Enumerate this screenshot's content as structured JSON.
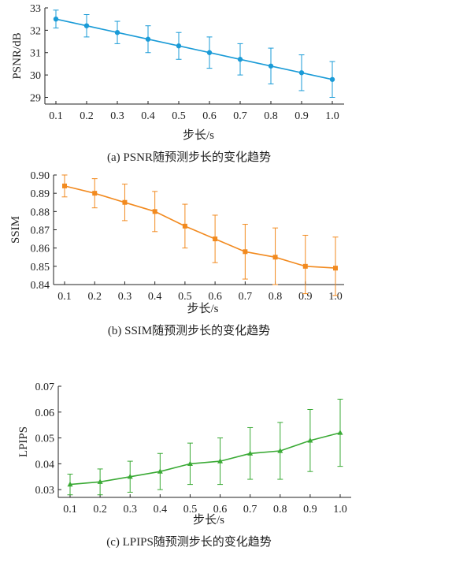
{
  "chart_data": [
    {
      "type": "line",
      "x": [
        0.1,
        0.2,
        0.3,
        0.4,
        0.5,
        0.6,
        0.7,
        0.8,
        0.9,
        1.0
      ],
      "xticks": [
        "0.1",
        "0.2",
        "0.3",
        "0.4",
        "0.5",
        "0.6",
        "0.7",
        "0.8",
        "0.9",
        "1.0"
      ],
      "yticks": [
        "33",
        "32",
        "31",
        "30",
        "29"
      ],
      "ylim": [
        28.7,
        33.0
      ],
      "xlabel": "步长/s",
      "ylabel": "PSNR/dB",
      "caption": "(a) PSNR随预测步长的变化趋势",
      "marker": "circle",
      "color": "#1a9bd7",
      "series": [
        {
          "values": [
            32.5,
            32.2,
            31.9,
            31.6,
            31.3,
            31.0,
            30.7,
            30.4,
            30.1,
            29.8
          ],
          "err_low": [
            32.1,
            31.7,
            31.4,
            31.0,
            30.7,
            30.3,
            30.0,
            29.6,
            29.3,
            29.0
          ],
          "err_high": [
            32.9,
            32.7,
            32.4,
            32.2,
            31.9,
            31.7,
            31.4,
            31.2,
            30.9,
            30.6
          ]
        }
      ]
    },
    {
      "type": "line",
      "x": [
        0.1,
        0.2,
        0.3,
        0.4,
        0.5,
        0.6,
        0.7,
        0.8,
        0.9,
        1.0
      ],
      "xticks": [
        "0.1",
        "0.2",
        "0.3",
        "0.4",
        "0.5",
        "0.6",
        "0.7",
        "0.8",
        "0.9",
        "1.0"
      ],
      "yticks": [
        "0.90",
        "0.89",
        "0.88",
        "0.87",
        "0.86",
        "0.85",
        "0.84"
      ],
      "ylim": [
        0.84,
        0.9
      ],
      "xlabel": "步长/s",
      "ylabel": "SSIM",
      "caption": "(b) SSIM随预测步长的变化趋势",
      "marker": "square",
      "color": "#f28a1f",
      "series": [
        {
          "values": [
            0.894,
            0.89,
            0.885,
            0.88,
            0.872,
            0.865,
            0.858,
            0.855,
            0.85,
            0.849
          ],
          "err_low": [
            0.888,
            0.882,
            0.875,
            0.869,
            0.86,
            0.852,
            0.843,
            0.84,
            0.835,
            0.834
          ],
          "err_high": [
            0.9,
            0.898,
            0.895,
            0.891,
            0.884,
            0.878,
            0.873,
            0.871,
            0.867,
            0.866
          ]
        }
      ]
    },
    {
      "type": "line",
      "x": [
        0.1,
        0.2,
        0.3,
        0.4,
        0.5,
        0.6,
        0.7,
        0.8,
        0.9,
        1.0
      ],
      "xticks": [
        "0.1",
        "0.2",
        "0.3",
        "0.4",
        "0.5",
        "0.6",
        "0.7",
        "0.8",
        "0.9",
        "1.0"
      ],
      "yticks": [
        "0.07",
        "0.06",
        "0.05",
        "0.04",
        "0.03"
      ],
      "ylim": [
        0.027,
        0.07
      ],
      "xlabel": "步长/s",
      "ylabel": "LPIPS",
      "caption": "(c) LPIPS随预测步长的变化趋势",
      "marker": "triangle",
      "color": "#3aaa35",
      "series": [
        {
          "values": [
            0.032,
            0.033,
            0.035,
            0.037,
            0.04,
            0.041,
            0.044,
            0.045,
            0.049,
            0.052
          ],
          "err_low": [
            0.028,
            0.028,
            0.029,
            0.03,
            0.032,
            0.032,
            0.034,
            0.034,
            0.037,
            0.039
          ],
          "err_high": [
            0.036,
            0.038,
            0.041,
            0.044,
            0.048,
            0.05,
            0.054,
            0.056,
            0.061,
            0.065
          ]
        }
      ]
    }
  ]
}
